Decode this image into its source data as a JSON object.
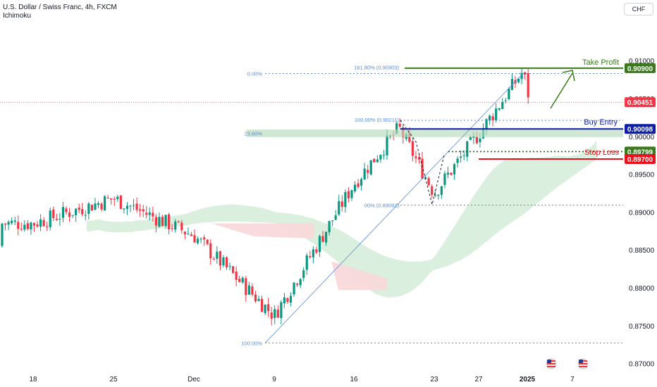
{
  "header": {
    "symbol_title": "U.S. Dollar / Swiss Franc, 4h, FXCM",
    "indicator": "Ichimoku",
    "currency_button": "CHF"
  },
  "colors": {
    "up": "#089981",
    "down": "#f23645",
    "take_profit": "#3a7a1c",
    "buy_entry": "#0d1ea8",
    "stop_loss": "#e8101a",
    "fib": "#5b8ad6",
    "cloud_bull": "#d4ecd8",
    "cloud_bear": "#fad7d9",
    "last_price": "#f23645",
    "axis_text": "#131722"
  },
  "levels": {
    "take_profit": {
      "label": "Take Profit",
      "price": 0.909,
      "badge": "0.90900"
    },
    "buy_entry": {
      "label": "Buy Entry",
      "price": 0.90098,
      "badge": "0.90098"
    },
    "stop_loss": {
      "label": "Stop Loss",
      "price": 0.897,
      "badge": "0.89700"
    },
    "last_price": {
      "price": 0.90451,
      "badge": "0.90451"
    },
    "dotted": {
      "price": 0.89799,
      "badge": "0.89799"
    }
  },
  "fib_labels": {
    "tp_ext": "161.80% (0.90903)",
    "zero": "0.00%",
    "hundred_upper": "100.00% (0.90211)",
    "t236": "23.60%",
    "lower": "00% (0.89092)",
    "hundred": "100.00%"
  },
  "chart_data": {
    "type": "candlestick",
    "title": "U.S. Dollar / Swiss Franc, 4h, FXCM",
    "price_axis": {
      "ticks": [
        "0.91000",
        "0.90500",
        "0.90000",
        "0.89500",
        "0.89000",
        "0.88500",
        "0.88000",
        "0.87500",
        "0.87000"
      ],
      "min": 0.8695,
      "max": 0.9115
    },
    "time_axis": {
      "ticks": [
        "18",
        "25",
        "Dec",
        "9",
        "16",
        "23",
        "27",
        "2025",
        "7"
      ]
    },
    "anchor_candles": [
      {
        "label": "18",
        "close": 0.8885
      },
      {
        "label": "25",
        "close": 0.8918
      },
      {
        "label": "Dec",
        "close": 0.8869
      },
      {
        "label": "9",
        "close": 0.8763
      },
      {
        "label": "16",
        "close": 0.8937
      },
      {
        "label": "19",
        "close": 0.9011
      },
      {
        "label": "23",
        "close": 0.8925
      },
      {
        "label": "27",
        "close": 0.9003
      },
      {
        "label": "2025",
        "close": 0.9086
      },
      {
        "label": "last",
        "close": 0.90451
      }
    ]
  }
}
